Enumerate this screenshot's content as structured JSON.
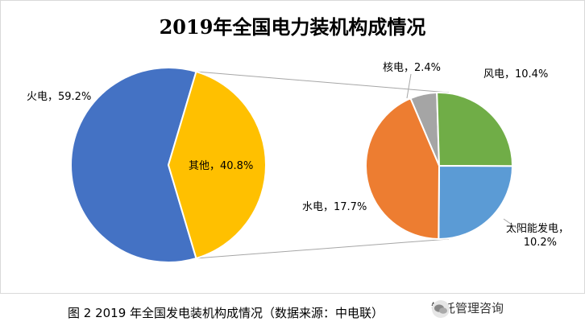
{
  "chart_data": {
    "type": "pie",
    "title": "2019年全国电力装机构成情况",
    "main_pie": {
      "slices": [
        {
          "label": "火电，59.2%",
          "value": 59.2,
          "color": "#4472C4"
        },
        {
          "label": "其他，40.8%",
          "value": 40.8,
          "color": "#FFC000"
        }
      ]
    },
    "breakdown_pie": {
      "of": "其他",
      "slices": [
        {
          "label": "核电，2.4%",
          "value": 2.4,
          "color": "#A5A5A5"
        },
        {
          "label": "风电，10.4%",
          "value": 10.4,
          "color": "#70AD47"
        },
        {
          "label": "太阳能发电，",
          "label2": "10.2%",
          "value": 10.2,
          "color": "#5B9BD5"
        },
        {
          "label": "水电，17.7%",
          "value": 17.7,
          "color": "#ED7D31"
        }
      ]
    }
  },
  "caption": "图 2 2019 年全国发电装机构成情况（数据来源：中电联）",
  "watermark": "智托管理咨询"
}
